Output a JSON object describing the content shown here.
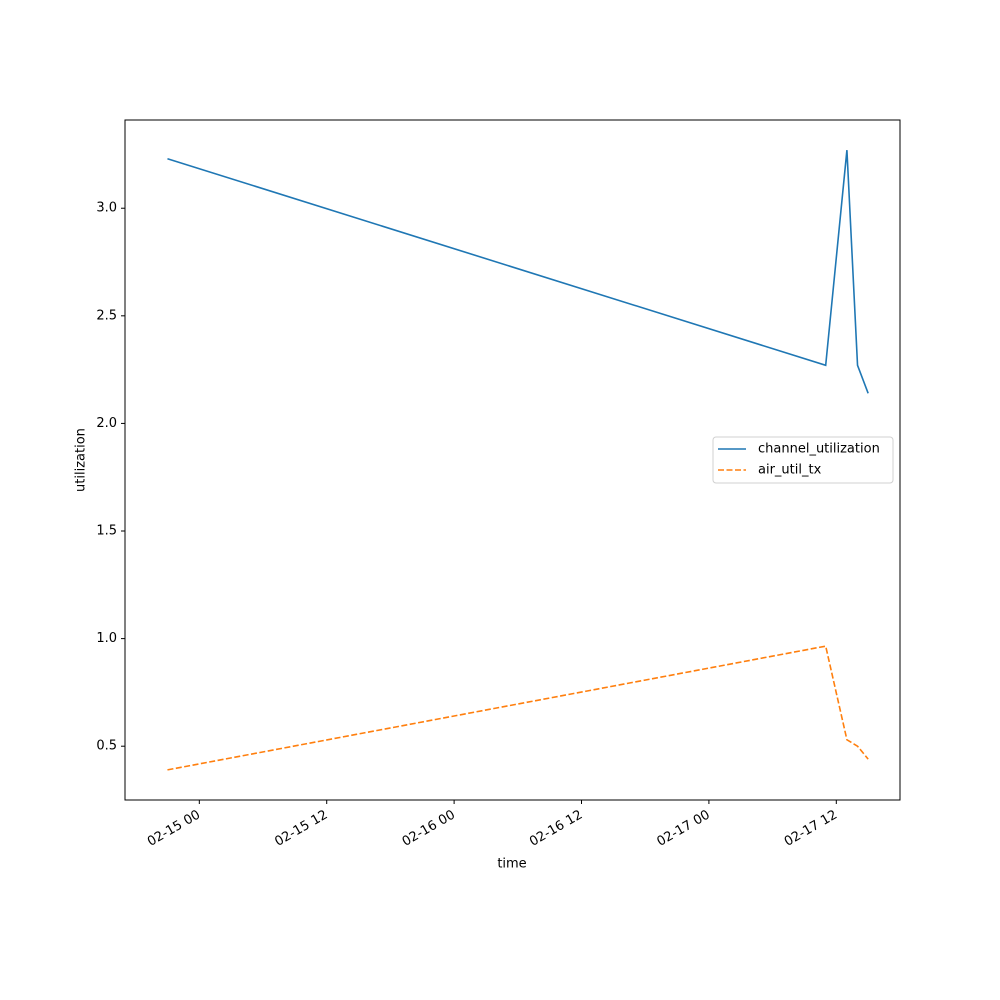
{
  "chart_data": {
    "type": "line",
    "x": [
      "02-14 21",
      "02-17 11",
      "02-17 13",
      "02-17 14",
      "02-17 15"
    ],
    "series": [
      {
        "name": "channel_utilization",
        "color": "#1f77b4",
        "dash": "solid",
        "values": [
          3.23,
          2.27,
          3.27,
          2.27,
          2.14
        ]
      },
      {
        "name": "air_util_tx",
        "color": "#ff7f0e",
        "dash": "dashed",
        "values": [
          0.39,
          0.965,
          0.53,
          0.5,
          0.44
        ]
      }
    ],
    "xlabel": "time",
    "ylabel": "utilization",
    "xlim": [
      "02-14 17",
      "02-17 18"
    ],
    "xticks": [
      "02-15 00",
      "02-15 12",
      "02-16 00",
      "02-16 12",
      "02-17 00",
      "02-17 12"
    ],
    "ylim": [
      0.25,
      3.41
    ],
    "yticks": [
      0.5,
      {
        "value": 1.0,
        "label": "1.0"
      },
      1.5,
      {
        "value": 2.0,
        "label": "2.0"
      },
      2.5,
      {
        "value": 3.0,
        "label": "3.0"
      }
    ],
    "grid": false,
    "legend": "right"
  }
}
